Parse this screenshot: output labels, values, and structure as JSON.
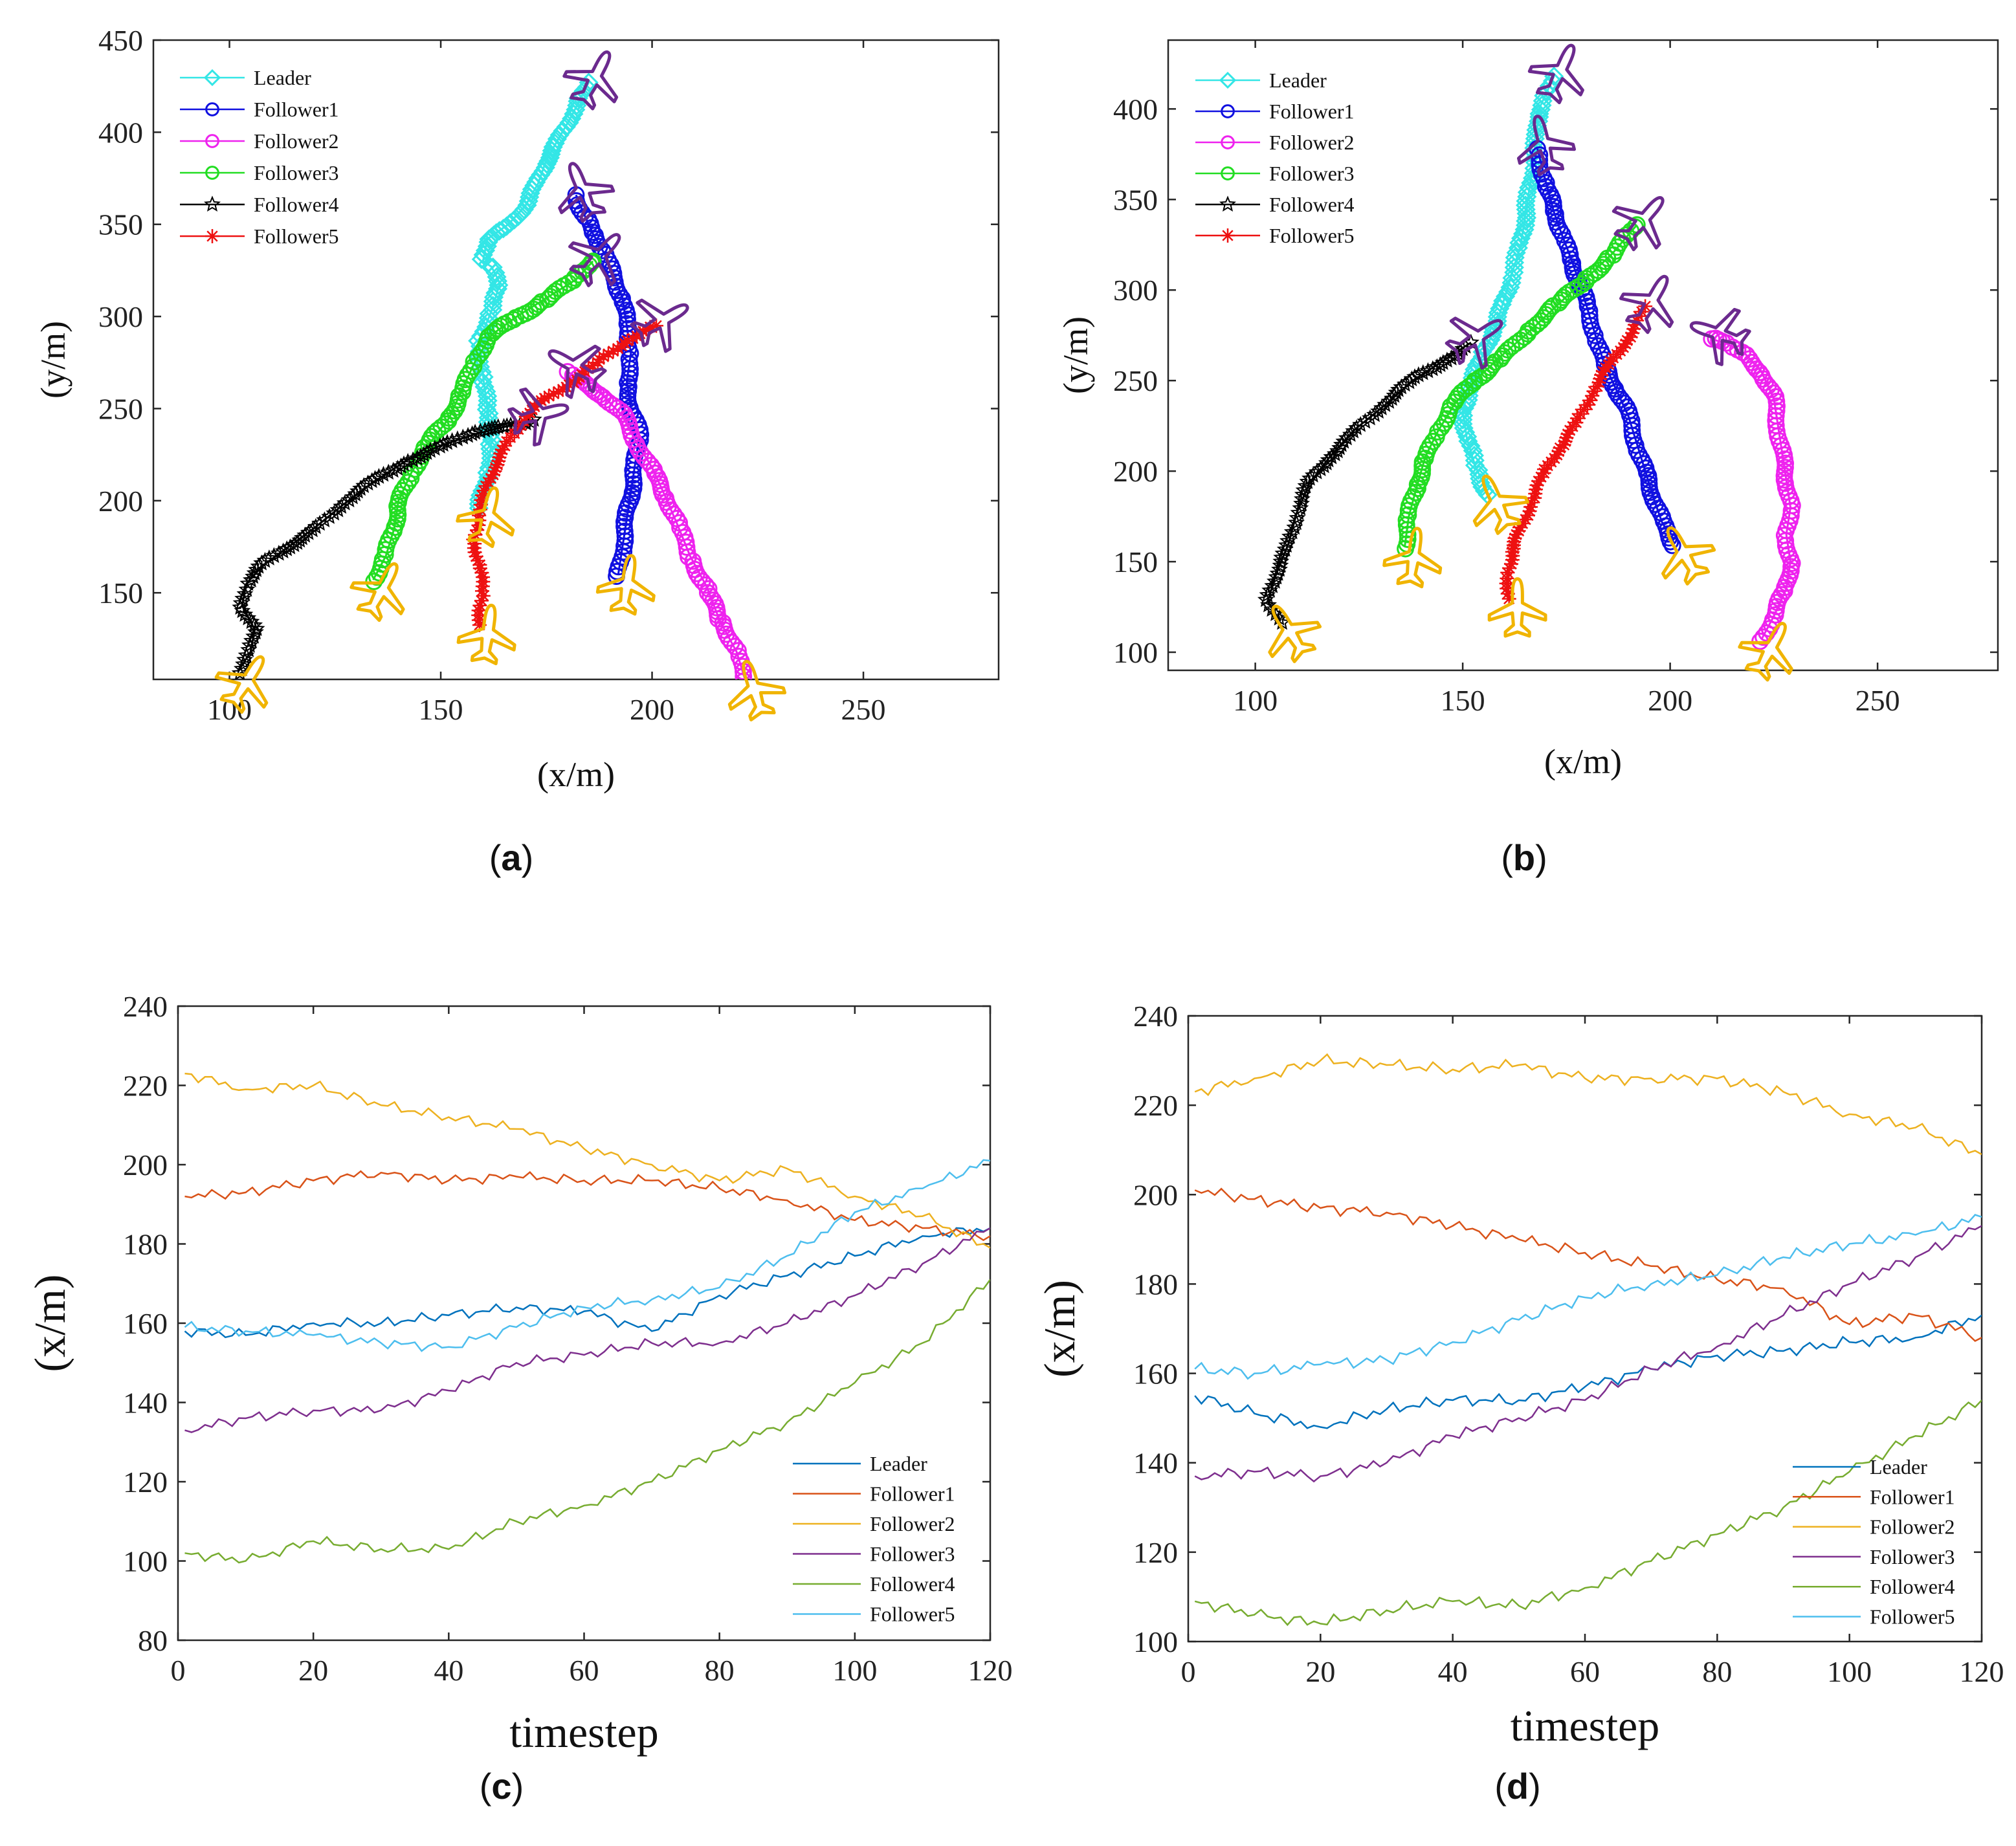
{
  "chart_data": [
    {
      "panel": "a",
      "type": "scatter",
      "title": "",
      "xlabel": "(x/m)",
      "ylabel": "(y/m)",
      "xlim": [
        82,
        282
      ],
      "ylim": [
        103,
        450
      ],
      "xticks": [
        100,
        150,
        200,
        250
      ],
      "yticks": [
        150,
        200,
        250,
        300,
        350,
        400,
        450
      ],
      "legend_position": "top-left",
      "series": [
        {
          "name": "Leader",
          "color": "#33e6e6",
          "marker": "diamond",
          "x": [
            159,
            161,
            162,
            161,
            160,
            159,
            162,
            164,
            162,
            160,
            161,
            166,
            170,
            173,
            175,
            178,
            181,
            183,
            185
          ],
          "y": [
            197,
            215,
            232,
            250,
            268,
            286,
            303,
            318,
            327,
            330,
            342,
            350,
            360,
            372,
            385,
            397,
            409,
            418,
            427
          ]
        },
        {
          "name": "Follower1",
          "color": "#1010e0",
          "marker": "circle",
          "x": [
            192,
            193,
            194,
            195,
            196,
            197,
            195,
            194,
            195,
            194,
            193,
            191,
            189,
            186,
            184,
            182
          ],
          "y": [
            160,
            175,
            190,
            205,
            220,
            235,
            250,
            265,
            280,
            295,
            310,
            322,
            333,
            345,
            355,
            366
          ]
        },
        {
          "name": "Follower2",
          "color": "#ee22ee",
          "marker": "circle",
          "x": [
            222,
            220,
            216,
            213,
            209,
            206,
            203,
            200,
            196,
            193,
            188,
            183,
            180
          ],
          "y": [
            103,
            118,
            135,
            153,
            170,
            187,
            203,
            218,
            233,
            246,
            258,
            266,
            270
          ]
        },
        {
          "name": "Follower3",
          "color": "#22dd22",
          "marker": "circle",
          "x": [
            134,
            137,
            139,
            140,
            143,
            147,
            152,
            155,
            158,
            162,
            168,
            175,
            182,
            186
          ],
          "y": [
            157,
            170,
            185,
            200,
            215,
            230,
            245,
            260,
            275,
            290,
            300,
            310,
            320,
            330
          ]
        },
        {
          "name": "Follower4",
          "color": "#000000",
          "marker": "star",
          "x": [
            102,
            105,
            106,
            103,
            104,
            108,
            114,
            120,
            127,
            134,
            142,
            150,
            158,
            165,
            172
          ],
          "y": [
            107,
            118,
            130,
            143,
            155,
            165,
            175,
            185,
            198,
            210,
            222,
            230,
            236,
            240,
            244
          ]
        },
        {
          "name": "Follower5",
          "color": "#ee1111",
          "marker": "asterisk",
          "x": [
            159,
            160,
            159,
            158,
            159,
            161,
            163,
            166,
            170,
            175,
            181,
            188,
            195,
            201
          ],
          "y": [
            133,
            150,
            165,
            180,
            195,
            207,
            220,
            233,
            245,
            255,
            265,
            277,
            287,
            295
          ]
        }
      ]
    },
    {
      "panel": "b",
      "type": "scatter",
      "title": "",
      "xlabel": "(x/m)",
      "ylabel": "(y/m)",
      "xlim": [
        79,
        279
      ],
      "ylim": [
        90,
        438
      ],
      "xticks": [
        100,
        150,
        200,
        250
      ],
      "yticks": [
        100,
        150,
        200,
        250,
        300,
        350,
        400
      ],
      "legend_position": "top-left",
      "series": [
        {
          "name": "Leader",
          "color": "#33e6e6",
          "marker": "diamond",
          "x": [
            156,
            153,
            151,
            150,
            152,
            155,
            158,
            160,
            162,
            164,
            165,
            166,
            167,
            168,
            168,
            170,
            172
          ],
          "y": [
            188,
            203,
            218,
            233,
            250,
            265,
            280,
            295,
            310,
            325,
            340,
            355,
            370,
            385,
            398,
            408,
            418
          ]
        },
        {
          "name": "Follower1",
          "color": "#1010e0",
          "marker": "circle",
          "x": [
            201,
            198,
            196,
            194,
            192,
            190,
            187,
            184,
            182,
            180,
            178,
            176,
            174,
            172,
            170,
            168
          ],
          "y": [
            160,
            172,
            185,
            200,
            215,
            230,
            245,
            260,
            275,
            290,
            305,
            318,
            330,
            343,
            360,
            378
          ]
        },
        {
          "name": "Follower2",
          "color": "#ee22ee",
          "marker": "circle",
          "x": [
            222,
            225,
            228,
            229,
            228,
            229,
            228,
            227,
            226,
            225,
            222,
            218,
            214,
            210
          ],
          "y": [
            107,
            120,
            135,
            150,
            165,
            180,
            195,
            210,
            225,
            240,
            255,
            265,
            270,
            273
          ]
        },
        {
          "name": "Follower3",
          "color": "#22dd22",
          "marker": "circle",
          "x": [
            136,
            137,
            139,
            141,
            144,
            148,
            153,
            159,
            166,
            173,
            180,
            186,
            192
          ],
          "y": [
            158,
            175,
            192,
            208,
            222,
            237,
            250,
            263,
            277,
            292,
            307,
            320,
            336
          ]
        },
        {
          "name": "Follower4",
          "color": "#000000",
          "marker": "star",
          "x": [
            106,
            103,
            105,
            108,
            110,
            113,
            118,
            124,
            131,
            138,
            146,
            152
          ],
          "y": [
            117,
            128,
            143,
            160,
            177,
            193,
            208,
            223,
            236,
            250,
            262,
            271
          ]
        },
        {
          "name": "Follower5",
          "color": "#ee1111",
          "marker": "asterisk",
          "x": [
            161,
            161,
            162,
            164,
            167,
            170,
            174,
            178,
            182,
            186,
            190,
            194
          ],
          "y": [
            130,
            143,
            157,
            170,
            185,
            200,
            215,
            230,
            246,
            260,
            275,
            291
          ]
        }
      ]
    },
    {
      "panel": "c",
      "type": "line",
      "title": "",
      "xlabel": "timestep",
      "ylabel": "(x/m)",
      "xlim": [
        0,
        120
      ],
      "ylim": [
        80,
        240
      ],
      "xticks": [
        0,
        20,
        40,
        60,
        80,
        100,
        120
      ],
      "yticks": [
        80,
        100,
        120,
        140,
        160,
        180,
        200,
        220,
        240
      ],
      "legend_position": "bottom-right",
      "x": [
        1,
        10,
        20,
        30,
        40,
        50,
        60,
        70,
        80,
        90,
        100,
        110,
        120
      ],
      "series": [
        {
          "name": "Leader",
          "color": "#0072bd",
          "values": [
            158,
            157,
            160,
            160,
            162,
            164,
            163,
            158,
            167,
            172,
            177,
            182,
            184
          ]
        },
        {
          "name": "Follower1",
          "color": "#d95319",
          "values": [
            192,
            193,
            196,
            198,
            196,
            197,
            196,
            196,
            194,
            191,
            186,
            184,
            182
          ]
        },
        {
          "name": "Follower2",
          "color": "#edb120",
          "values": [
            223,
            219,
            220,
            215,
            212,
            209,
            204,
            200,
            196,
            199,
            192,
            187,
            179
          ]
        },
        {
          "name": "Follower3",
          "color": "#7e2f8e",
          "values": [
            133,
            136,
            138,
            138,
            143,
            150,
            152,
            155,
            155,
            160,
            167,
            175,
            184
          ]
        },
        {
          "name": "Follower4",
          "color": "#77ac30",
          "values": [
            102,
            100,
            105,
            103,
            103,
            110,
            114,
            120,
            128,
            135,
            145,
            155,
            171
          ]
        },
        {
          "name": "Follower5",
          "color": "#4dbeee",
          "values": [
            159,
            158,
            157,
            155,
            154,
            159,
            164,
            166,
            169,
            177,
            188,
            194,
            201
          ]
        }
      ]
    },
    {
      "panel": "d",
      "type": "line",
      "title": "",
      "xlabel": "timestep",
      "ylabel": "(x/m)",
      "xlim": [
        0,
        120
      ],
      "ylim": [
        100,
        240
      ],
      "xticks": [
        0,
        20,
        40,
        60,
        80,
        100,
        120
      ],
      "yticks": [
        100,
        120,
        140,
        160,
        180,
        200,
        220,
        240
      ],
      "legend_position": "bottom-right",
      "x": [
        1,
        10,
        20,
        30,
        40,
        50,
        60,
        70,
        80,
        90,
        100,
        110,
        120
      ],
      "series": [
        {
          "name": "Leader",
          "color": "#0072bd",
          "values": [
            155,
            151,
            148,
            152,
            154,
            154,
            157,
            161,
            164,
            165,
            167,
            168,
            173
          ]
        },
        {
          "name": "Follower1",
          "color": "#d95319",
          "values": [
            201,
            199,
            197,
            196,
            193,
            190,
            187,
            184,
            181,
            179,
            171,
            173,
            168
          ]
        },
        {
          "name": "Follower2",
          "color": "#edb120",
          "values": [
            223,
            226,
            230,
            229,
            228,
            229,
            226,
            226,
            226,
            223,
            218,
            215,
            209
          ]
        },
        {
          "name": "Follower3",
          "color": "#7e2f8e",
          "values": [
            137,
            138,
            137,
            140,
            146,
            150,
            154,
            161,
            166,
            173,
            180,
            186,
            193
          ]
        },
        {
          "name": "Follower4",
          "color": "#77ac30",
          "values": [
            109,
            106,
            104,
            107,
            109,
            108,
            112,
            118,
            124,
            130,
            138,
            146,
            154
          ]
        },
        {
          "name": "Follower5",
          "color": "#4dbeee",
          "values": [
            161,
            160,
            162,
            163,
            167,
            172,
            177,
            180,
            182,
            186,
            189,
            191,
            195
          ]
        }
      ]
    }
  ],
  "panel_labels": {
    "a": "a",
    "b": "b",
    "c": "c",
    "d": "d"
  }
}
